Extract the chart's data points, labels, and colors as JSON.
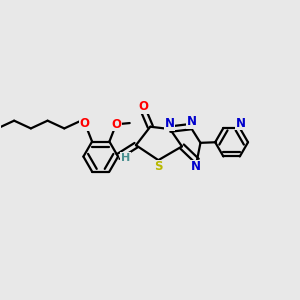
{
  "bg": "#e8e8e8",
  "bc": "#000000",
  "oc": "#ff0000",
  "nc": "#0000cc",
  "sc": "#b8b800",
  "hc": "#4a9090",
  "fs": 8.5,
  "lw": 1.6,
  "xlim": [
    0.0,
    1.0
  ],
  "ylim": [
    0.28,
    0.82
  ]
}
